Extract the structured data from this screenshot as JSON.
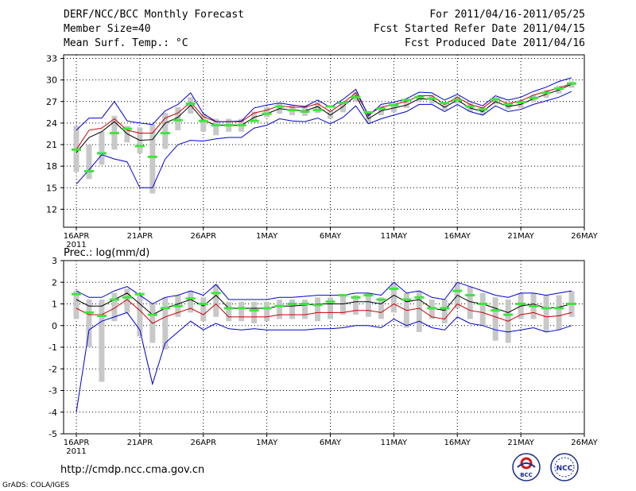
{
  "header": {
    "title": "DERF/NCC/BCC Monthly Forecast",
    "member_size": "Member Size=40",
    "variable1": "Mean Surf. Temp.: °C",
    "forecast_period": "For 2011/04/16-2011/05/25",
    "refer_date": "Fcst Started Refer Date 2011/04/15",
    "produced_date": "Fcst Produced Date 2011/04/16"
  },
  "variable2": "Prec.: log(mm/d)",
  "footer": {
    "url": "http://cmdp.ncc.cma.gov.cn",
    "credit": "GrADS: COLA/IGES",
    "logo_bcc": "BCC",
    "logo_ncc": "NCC"
  },
  "colors": {
    "ensemble_mean": "#000000",
    "observed": "#c80000",
    "green_bar": "#3ce63c",
    "gray_box": "#c8c8c8",
    "envelope": "#0000d2",
    "grid": "#000000"
  },
  "chart_data": [
    {
      "type": "line",
      "name": "temperature",
      "ylabel": "Mean Surf. Temp.: °C",
      "x_ticks": [
        "16APR\n2011",
        "21APR",
        "26APR",
        "1MAY",
        "6MAY",
        "11MAY",
        "16MAY",
        "21MAY",
        "26MAY"
      ],
      "xlim": [
        0,
        40
      ],
      "ylim": [
        9.5,
        33.5
      ],
      "yticks": [
        12,
        15,
        18,
        21,
        24,
        27,
        30,
        33
      ],
      "series": [
        {
          "name": "ensemble_mean",
          "values": [
            19.9,
            22.0,
            22.8,
            24.2,
            22.5,
            21.6,
            21.7,
            24.0,
            24.8,
            26.5,
            24.4,
            23.7,
            23.7,
            23.7,
            24.8,
            25.3,
            26.0,
            25.8,
            25.7,
            26.3,
            25.1,
            26.3,
            27.8,
            24.6,
            25.7,
            26.1,
            26.5,
            27.4,
            27.3,
            26.2,
            27.2,
            26.1,
            25.6,
            27.0,
            26.3,
            26.6,
            27.4,
            28.0,
            28.6,
            29.4
          ]
        },
        {
          "name": "observed_trend",
          "values": [
            20.3,
            23.0,
            23.3,
            24.6,
            23.0,
            22.6,
            22.6,
            24.7,
            25.4,
            26.9,
            24.9,
            24.2,
            24.2,
            24.2,
            25.4,
            25.8,
            26.4,
            26.2,
            26.2,
            26.7,
            25.6,
            26.8,
            28.2,
            25.2,
            26.2,
            26.6,
            27.0,
            27.8,
            27.8,
            26.6,
            27.6,
            26.6,
            26.1,
            27.4,
            26.7,
            27.1,
            27.9,
            28.4,
            28.9,
            29.5
          ]
        },
        {
          "name": "upper_envelope",
          "values": [
            23.0,
            24.7,
            24.7,
            27.0,
            24.3,
            24.0,
            23.8,
            25.7,
            26.6,
            28.2,
            25.3,
            24.2,
            24.2,
            24.3,
            26.1,
            26.5,
            26.8,
            26.5,
            26.3,
            27.2,
            26.2,
            27.3,
            28.7,
            25.0,
            26.6,
            26.9,
            27.4,
            28.3,
            28.2,
            27.2,
            28.0,
            27.0,
            26.4,
            27.8,
            27.2,
            27.6,
            28.4,
            29.0,
            29.8,
            30.3
          ]
        },
        {
          "name": "lower_envelope",
          "values": [
            15.5,
            17.5,
            19.6,
            19.0,
            18.6,
            15.0,
            15.0,
            19.0,
            21.0,
            21.6,
            21.5,
            21.8,
            22.0,
            22.0,
            23.3,
            23.7,
            24.6,
            24.3,
            24.2,
            24.7,
            23.9,
            24.8,
            26.4,
            23.9,
            24.6,
            25.1,
            25.6,
            26.6,
            26.6,
            25.6,
            26.6,
            25.6,
            25.1,
            26.4,
            25.6,
            25.9,
            26.6,
            27.1,
            27.6,
            28.4
          ]
        },
        {
          "name": "green_markers",
          "values": [
            20.3,
            17.3,
            19.8,
            22.6,
            23.2,
            20.8,
            19.3,
            22.6,
            24.4,
            26.7,
            24.3,
            23.7,
            23.7,
            23.7,
            24.3,
            25.3,
            26.3,
            25.8,
            25.6,
            25.8,
            26.3,
            26.8,
            27.6,
            25.5,
            26.0,
            26.5,
            27.2,
            27.6,
            27.4,
            26.8,
            27.2,
            26.3,
            25.9,
            27.3,
            26.6,
            26.9,
            27.5,
            28.2,
            28.8,
            29.5
          ]
        }
      ],
      "boxes_low": [
        17.2,
        16.2,
        18.2,
        20.3,
        21.3,
        19.8,
        14.2,
        20.4,
        23.0,
        25.3,
        22.8,
        22.3,
        22.8,
        22.8,
        24.4,
        24.8,
        25.3,
        25.1,
        25.0,
        25.4,
        24.6,
        25.5,
        27.0,
        23.9,
        25.1,
        25.5,
        26.1,
        27.0,
        26.7,
        25.8,
        26.7,
        25.6,
        25.2,
        26.6,
        25.9,
        26.1,
        26.9,
        27.5,
        28.1,
        28.9
      ],
      "boxes_high": [
        23.6,
        21.0,
        22.8,
        25.0,
        23.6,
        23.4,
        23.8,
        25.4,
        26.2,
        27.6,
        25.3,
        24.6,
        24.6,
        24.6,
        25.6,
        26.2,
        26.8,
        26.5,
        26.4,
        26.9,
        25.8,
        27.0,
        28.4,
        25.2,
        26.3,
        26.6,
        27.1,
        27.9,
        27.9,
        26.9,
        27.7,
        26.8,
        26.2,
        27.6,
        26.9,
        27.2,
        27.9,
        28.6,
        29.2,
        29.8
      ]
    },
    {
      "type": "line",
      "name": "precipitation",
      "ylabel": "Prec.: log(mm/d)",
      "x_ticks": [
        "16APR\n2011",
        "21APR",
        "26APR",
        "1MAY",
        "6MAY",
        "11MAY",
        "16MAY",
        "21MAY",
        "26MAY"
      ],
      "xlim": [
        0,
        40
      ],
      "ylim": [
        -5,
        3
      ],
      "yticks": [
        -5,
        -4,
        -3,
        -2,
        -1,
        0,
        1,
        2,
        3
      ],
      "series": [
        {
          "name": "ensemble_mean",
          "values": [
            1.2,
            0.9,
            0.9,
            1.2,
            1.5,
            1.0,
            0.5,
            0.8,
            1.0,
            1.2,
            0.9,
            1.4,
            0.8,
            0.8,
            0.8,
            0.8,
            0.9,
            0.9,
            0.95,
            1.0,
            1.0,
            1.0,
            1.1,
            1.1,
            1.0,
            1.4,
            1.1,
            1.2,
            0.8,
            0.7,
            1.4,
            1.1,
            1.0,
            0.8,
            0.6,
            0.9,
            1.0,
            0.8,
            0.85,
            1.0
          ]
        },
        {
          "name": "observed_trend",
          "values": [
            0.8,
            0.5,
            0.5,
            0.8,
            1.2,
            0.7,
            0.1,
            0.4,
            0.6,
            0.8,
            0.5,
            1.0,
            0.4,
            0.4,
            0.4,
            0.4,
            0.5,
            0.5,
            0.5,
            0.6,
            0.6,
            0.6,
            0.7,
            0.7,
            0.6,
            1.0,
            0.7,
            0.8,
            0.4,
            0.3,
            1.0,
            0.7,
            0.6,
            0.4,
            0.2,
            0.5,
            0.6,
            0.4,
            0.45,
            0.6
          ]
        },
        {
          "name": "upper_envelope",
          "values": [
            1.6,
            1.3,
            1.3,
            1.6,
            1.8,
            1.4,
            1.0,
            1.3,
            1.4,
            1.6,
            1.4,
            1.9,
            1.2,
            1.2,
            1.2,
            1.2,
            1.3,
            1.3,
            1.35,
            1.4,
            1.4,
            1.4,
            1.5,
            1.5,
            1.4,
            2.0,
            1.5,
            1.6,
            1.3,
            1.2,
            2.0,
            1.8,
            1.6,
            1.4,
            1.3,
            1.5,
            1.5,
            1.4,
            1.5,
            1.6
          ]
        },
        {
          "name": "lower_envelope",
          "values": [
            -4.0,
            -0.2,
            0.2,
            0.4,
            0.6,
            -0.2,
            -2.7,
            -0.8,
            -0.3,
            0.2,
            -0.2,
            0.1,
            -0.15,
            -0.2,
            -0.15,
            -0.2,
            -0.2,
            -0.2,
            -0.2,
            -0.15,
            -0.15,
            -0.1,
            0.0,
            0.0,
            -0.1,
            0.3,
            0.0,
            0.2,
            -0.1,
            -0.2,
            0.4,
            0.1,
            0.0,
            -0.2,
            -0.3,
            -0.2,
            -0.1,
            -0.3,
            -0.2,
            0.0
          ]
        },
        {
          "name": "green_markers",
          "values": [
            1.45,
            0.6,
            0.45,
            1.2,
            1.3,
            1.45,
            0.5,
            0.8,
            0.9,
            1.25,
            1.0,
            1.5,
            0.8,
            0.8,
            0.7,
            0.8,
            0.9,
            1.0,
            1.0,
            0.95,
            1.1,
            1.4,
            1.3,
            1.4,
            1.2,
            1.7,
            1.2,
            1.3,
            0.8,
            0.8,
            1.6,
            1.4,
            1.0,
            0.7,
            0.5,
            1.0,
            0.9,
            0.8,
            0.8,
            1.0
          ]
        }
      ],
      "boxes_low": [
        0.3,
        -1.0,
        -2.6,
        0.2,
        0.6,
        -0.5,
        -0.8,
        -1.1,
        0.4,
        0.6,
        0.2,
        0.4,
        0.2,
        0.2,
        0.1,
        0.2,
        0.3,
        0.3,
        0.3,
        0.2,
        0.3,
        0.5,
        0.5,
        0.4,
        0.3,
        0.6,
        -0.1,
        -0.3,
        0.3,
        0.1,
        0.8,
        0.3,
        0.0,
        -0.7,
        -0.8,
        0.3,
        0.3,
        -0.3,
        -0.2,
        0.4
      ],
      "boxes_high": [
        1.6,
        1.2,
        1.2,
        1.5,
        1.7,
        1.4,
        1.0,
        1.3,
        1.4,
        1.6,
        1.3,
        1.9,
        1.1,
        1.1,
        1.1,
        1.1,
        1.2,
        1.2,
        1.2,
        1.3,
        1.3,
        1.4,
        1.4,
        1.5,
        1.3,
        2.0,
        1.5,
        1.6,
        1.2,
        1.2,
        2.0,
        1.8,
        1.5,
        1.3,
        1.2,
        1.5,
        1.5,
        1.4,
        1.4,
        1.6
      ]
    }
  ]
}
